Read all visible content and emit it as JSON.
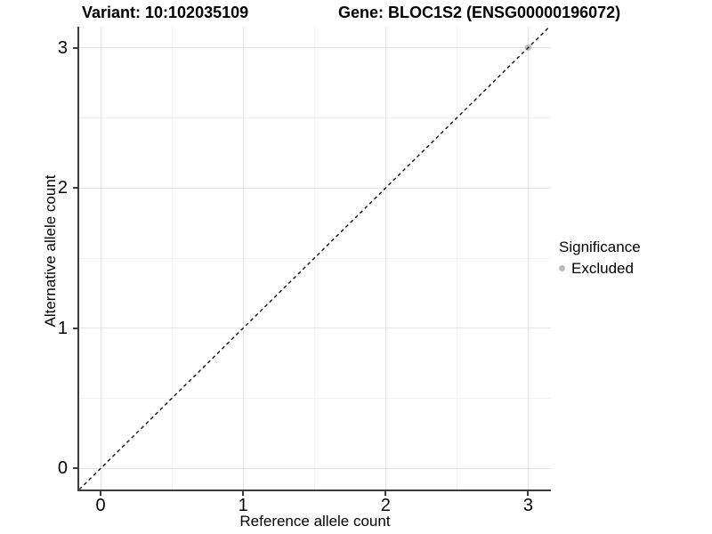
{
  "chart_data": {
    "type": "scatter",
    "title_left": "Variant: 10:102035109",
    "title_right": "Gene: BLOC1S2 (ENSG00000196072)",
    "xlabel": "Reference allele count",
    "ylabel": "Alternative allele count",
    "xlim": [
      -0.15,
      3.16
    ],
    "ylim": [
      -0.15,
      3.15
    ],
    "x_ticks": {
      "major": [
        0,
        1,
        2,
        3
      ],
      "minor": [
        0.5,
        1.5,
        2.5
      ]
    },
    "y_ticks": {
      "major": [
        0,
        1,
        2,
        3
      ],
      "minor": [
        0.5,
        1.5,
        2.5
      ]
    },
    "grid": {
      "show": true,
      "major_color": "#e4e4e4",
      "minor_color": "#f1f1f1"
    },
    "reference_line": {
      "type": "identity",
      "slope": 1,
      "intercept": 0,
      "style": "dashed",
      "color": "#111111"
    },
    "series": [
      {
        "name": "Excluded",
        "marker": "circle",
        "color": "#bcbcbc",
        "points": [
          [
            3,
            3
          ]
        ]
      }
    ],
    "legend": {
      "title": "Significance",
      "position": "right",
      "items": [
        {
          "label": "Excluded",
          "color": "#bcbcbc",
          "marker": "circle"
        }
      ]
    }
  },
  "style": {
    "background": "#ffffff",
    "axis_line_color": "#3c3c3c",
    "text_color": "#000000"
  }
}
